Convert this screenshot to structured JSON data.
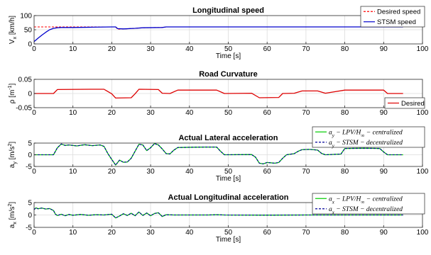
{
  "chart_data": [
    {
      "type": "line",
      "title": "Longitudinal speed",
      "xlabel": "Time [s]",
      "ylabel": "V",
      "ylabel_sub": "x",
      "ylabel_unit": " [km/h]",
      "xlim": [
        0,
        100
      ],
      "ylim": [
        0,
        100
      ],
      "xticks": [
        0,
        10,
        20,
        30,
        40,
        50,
        60,
        70,
        80,
        90,
        100
      ],
      "yticks": [
        0,
        50,
        100
      ],
      "grid": true,
      "legend": "top-right",
      "series": [
        {
          "name": "Desired speed",
          "color": "#ff0000",
          "dash": "dashed",
          "points": [
            [
              0,
              60
            ],
            [
              5,
              60
            ],
            [
              7,
              60
            ],
            [
              21,
              60
            ],
            [
              21.5,
              52
            ],
            [
              23,
              53
            ],
            [
              26,
              55
            ],
            [
              28,
              57
            ],
            [
              33,
              58
            ],
            [
              34,
              60
            ],
            [
              95,
              60
            ]
          ]
        },
        {
          "name": "STSM speed",
          "color": "#0000cc",
          "dash": "solid",
          "points": [
            [
              0,
              8
            ],
            [
              1,
              20
            ],
            [
              2,
              31
            ],
            [
              3,
              41
            ],
            [
              4,
              50
            ],
            [
              5,
              55
            ],
            [
              6,
              57
            ],
            [
              7,
              58
            ],
            [
              10,
              58
            ],
            [
              15,
              59
            ],
            [
              20,
              60
            ],
            [
              21,
              60
            ],
            [
              21.5,
              54
            ],
            [
              23,
              53
            ],
            [
              26,
              55
            ],
            [
              28,
              57
            ],
            [
              33,
              58
            ],
            [
              34,
              60
            ],
            [
              95,
              60
            ]
          ]
        }
      ]
    },
    {
      "type": "line",
      "title": "Road Curvature",
      "xlabel": "",
      "ylabel": "ρ",
      "ylabel_unit": " [m",
      "ylabel_sup": "-1",
      "ylabel_close": "]",
      "xlim": [
        0,
        100
      ],
      "ylim": [
        -0.05,
        0.05
      ],
      "xticks": [
        0,
        10,
        20,
        30,
        40,
        50,
        60,
        70,
        80,
        90,
        100
      ],
      "yticks": [
        -0.05,
        0,
        0.05
      ],
      "grid": true,
      "legend": "bottom-right",
      "series": [
        {
          "name": "Desired",
          "color": "#dd0000",
          "dash": "solid",
          "points": [
            [
              0,
              0
            ],
            [
              5,
              0
            ],
            [
              6,
              0.014
            ],
            [
              15,
              0.015
            ],
            [
              18,
              0.015
            ],
            [
              20,
              -0.001
            ],
            [
              21,
              -0.016
            ],
            [
              25,
              -0.015
            ],
            [
              26,
              -0.001
            ],
            [
              27,
              0.015
            ],
            [
              32,
              0.014
            ],
            [
              33,
              0.001
            ],
            [
              35,
              0
            ],
            [
              37,
              0.012
            ],
            [
              47,
              0.012
            ],
            [
              49,
              0
            ],
            [
              56,
              0.001
            ],
            [
              58,
              -0.015
            ],
            [
              63,
              -0.014
            ],
            [
              64,
              0
            ],
            [
              67,
              0.001
            ],
            [
              69,
              0.009
            ],
            [
              73,
              0.009
            ],
            [
              75,
              0.001
            ],
            [
              80,
              0.012
            ],
            [
              90,
              0.012
            ],
            [
              91,
              0
            ],
            [
              95,
              0
            ]
          ]
        }
      ]
    },
    {
      "type": "line",
      "title": "Actual Lateral acceleration",
      "xlabel": "Time [s]",
      "ylabel": "a",
      "ylabel_sub": "y",
      "ylabel_unit": " [m/s",
      "ylabel_sup": "2",
      "ylabel_close": "]",
      "xlim": [
        0,
        100
      ],
      "ylim": [
        -5,
        5
      ],
      "xticks": [
        0,
        10,
        20,
        30,
        40,
        50,
        60,
        70,
        80,
        90,
        100
      ],
      "yticks": [
        -5,
        0,
        5
      ],
      "grid": true,
      "legend": "top-right",
      "series": [
        {
          "name": "a_y − LPV/H_∞ − centralized",
          "color": "#00cc00",
          "dash": "solid",
          "points": [
            [
              0,
              0
            ],
            [
              5,
              0
            ],
            [
              6,
              3
            ],
            [
              7,
              4.6
            ],
            [
              8,
              4
            ],
            [
              9,
              4.2
            ],
            [
              11,
              3.8
            ],
            [
              13,
              4.3
            ],
            [
              15,
              3.9
            ],
            [
              17,
              4.2
            ],
            [
              18,
              3.6
            ],
            [
              19,
              0.5
            ],
            [
              20,
              -2
            ],
            [
              21,
              -4.4
            ],
            [
              22,
              -2.3
            ],
            [
              23,
              -3.2
            ],
            [
              24,
              -3.1
            ],
            [
              25,
              -1.5
            ],
            [
              26,
              1.5
            ],
            [
              27,
              4.5
            ],
            [
              28,
              4.2
            ],
            [
              29,
              1.8
            ],
            [
              30,
              3
            ],
            [
              31,
              4.8
            ],
            [
              32,
              4.2
            ],
            [
              33,
              2.5
            ],
            [
              34,
              0.5
            ],
            [
              35,
              0.4
            ],
            [
              36,
              2
            ],
            [
              37,
              3.1
            ],
            [
              40,
              3.2
            ],
            [
              44,
              3.3
            ],
            [
              47,
              3.3
            ],
            [
              48,
              1.5
            ],
            [
              49,
              0
            ],
            [
              56,
              0.1
            ],
            [
              57,
              -1
            ],
            [
              58,
              -3.6
            ],
            [
              59,
              -3.9
            ],
            [
              60,
              -3.3
            ],
            [
              62,
              -3.6
            ],
            [
              63,
              -3.3
            ],
            [
              64,
              -1.5
            ],
            [
              65,
              0
            ],
            [
              67,
              0.5
            ],
            [
              68,
              1.5
            ],
            [
              69,
              2.2
            ],
            [
              71,
              2.3
            ],
            [
              73,
              2
            ],
            [
              74,
              0.6
            ],
            [
              75,
              0
            ],
            [
              79,
              0.3
            ],
            [
              80,
              2.7
            ],
            [
              85,
              2.8
            ],
            [
              89,
              2.7
            ],
            [
              90,
              1.2
            ],
            [
              91,
              0
            ],
            [
              95,
              0
            ]
          ]
        },
        {
          "name": "a_y − STSM − decentralized",
          "color": "#000099",
          "dash": "dashed",
          "points": [
            [
              0,
              0
            ],
            [
              5,
              0
            ],
            [
              6,
              3
            ],
            [
              7,
              4.6
            ],
            [
              8,
              4
            ],
            [
              9,
              4.2
            ],
            [
              11,
              3.8
            ],
            [
              13,
              4.3
            ],
            [
              15,
              3.9
            ],
            [
              17,
              4.2
            ],
            [
              18,
              3.6
            ],
            [
              19,
              0.5
            ],
            [
              20,
              -2
            ],
            [
              21,
              -4.4
            ],
            [
              22,
              -2.3
            ],
            [
              23,
              -3.2
            ],
            [
              24,
              -3.1
            ],
            [
              25,
              -1.5
            ],
            [
              26,
              1.5
            ],
            [
              27,
              4.5
            ],
            [
              28,
              4.2
            ],
            [
              29,
              1.8
            ],
            [
              30,
              3
            ],
            [
              31,
              4.8
            ],
            [
              32,
              4.2
            ],
            [
              33,
              2.5
            ],
            [
              34,
              0.5
            ],
            [
              35,
              0.4
            ],
            [
              36,
              2
            ],
            [
              37,
              3.1
            ],
            [
              40,
              3.2
            ],
            [
              44,
              3.3
            ],
            [
              47,
              3.3
            ],
            [
              48,
              1.5
            ],
            [
              49,
              0
            ],
            [
              56,
              0.1
            ],
            [
              57,
              -1
            ],
            [
              58,
              -3.6
            ],
            [
              59,
              -3.9
            ],
            [
              60,
              -3.3
            ],
            [
              62,
              -3.6
            ],
            [
              63,
              -3.3
            ],
            [
              64,
              -1.5
            ],
            [
              65,
              0
            ],
            [
              67,
              0.5
            ],
            [
              68,
              1.5
            ],
            [
              69,
              2.2
            ],
            [
              71,
              2.3
            ],
            [
              73,
              2
            ],
            [
              74,
              0.6
            ],
            [
              75,
              0
            ],
            [
              79,
              0.3
            ],
            [
              80,
              2.7
            ],
            [
              85,
              2.8
            ],
            [
              89,
              2.7
            ],
            [
              90,
              1.2
            ],
            [
              91,
              0
            ],
            [
              95,
              0
            ]
          ]
        }
      ]
    },
    {
      "type": "line",
      "title": "Actual Longitudinal acceleration",
      "xlabel": "Time [s]",
      "ylabel": "a",
      "ylabel_sub": "x",
      "ylabel_unit": " [m/s",
      "ylabel_sup": "2",
      "ylabel_close": "]",
      "xlim": [
        0,
        100
      ],
      "ylim": [
        -5,
        5
      ],
      "xticks": [
        0,
        10,
        20,
        30,
        40,
        50,
        60,
        70,
        80,
        90,
        100
      ],
      "yticks": [
        -5,
        0,
        5
      ],
      "grid": true,
      "legend": "top-right",
      "series": [
        {
          "name": "a_x − LPV/H_∞ − centralized",
          "color": "#00cc00",
          "dash": "solid",
          "points": [
            [
              0,
              2.2
            ],
            [
              0.5,
              2.9
            ],
            [
              1,
              2.5
            ],
            [
              2,
              2.8
            ],
            [
              3,
              2.4
            ],
            [
              4,
              2.6
            ],
            [
              5,
              1.8
            ],
            [
              5.5,
              0.3
            ],
            [
              6,
              -0.2
            ],
            [
              7,
              0.3
            ],
            [
              8,
              -0.3
            ],
            [
              9,
              0.2
            ],
            [
              10,
              -0.1
            ],
            [
              12,
              0.2
            ],
            [
              14,
              -0.1
            ],
            [
              16,
              0.1
            ],
            [
              18,
              0
            ],
            [
              20,
              0.3
            ],
            [
              21,
              -1.2
            ],
            [
              22,
              -0.4
            ],
            [
              23,
              0.5
            ],
            [
              24,
              -0.2
            ],
            [
              25,
              0.7
            ],
            [
              26,
              -0.3
            ],
            [
              27,
              1.2
            ],
            [
              28,
              -0.2
            ],
            [
              29,
              0.8
            ],
            [
              30,
              -0.3
            ],
            [
              31,
              0.6
            ],
            [
              32,
              0.9
            ],
            [
              33,
              -0.6
            ],
            [
              34,
              0.1
            ],
            [
              36,
              0
            ],
            [
              45,
              0
            ],
            [
              47,
              0.1
            ],
            [
              49,
              0
            ],
            [
              60,
              -0.05
            ],
            [
              70,
              0
            ],
            [
              80,
              0
            ],
            [
              95,
              0
            ]
          ]
        },
        {
          "name": "a_x − STSM − decentralized",
          "color": "#000099",
          "dash": "dashed",
          "points": [
            [
              0,
              2.2
            ],
            [
              0.5,
              2.9
            ],
            [
              1,
              2.5
            ],
            [
              2,
              2.8
            ],
            [
              3,
              2.4
            ],
            [
              4,
              2.6
            ],
            [
              5,
              1.8
            ],
            [
              5.5,
              0.3
            ],
            [
              6,
              -0.2
            ],
            [
              7,
              0.3
            ],
            [
              8,
              -0.3
            ],
            [
              9,
              0.2
            ],
            [
              10,
              -0.1
            ],
            [
              12,
              0.2
            ],
            [
              14,
              -0.1
            ],
            [
              16,
              0.1
            ],
            [
              18,
              0
            ],
            [
              20,
              0.3
            ],
            [
              21,
              -1.2
            ],
            [
              22,
              -0.4
            ],
            [
              23,
              0.5
            ],
            [
              24,
              -0.2
            ],
            [
              25,
              0.7
            ],
            [
              26,
              -0.3
            ],
            [
              27,
              1.2
            ],
            [
              28,
              -0.2
            ],
            [
              29,
              0.8
            ],
            [
              30,
              -0.3
            ],
            [
              31,
              0.6
            ],
            [
              32,
              0.9
            ],
            [
              33,
              -0.6
            ],
            [
              34,
              0.1
            ],
            [
              36,
              0
            ],
            [
              45,
              0
            ],
            [
              47,
              0.1
            ],
            [
              49,
              0
            ],
            [
              60,
              -0.05
            ],
            [
              70,
              0
            ],
            [
              80,
              0
            ],
            [
              95,
              0
            ]
          ]
        }
      ]
    }
  ]
}
